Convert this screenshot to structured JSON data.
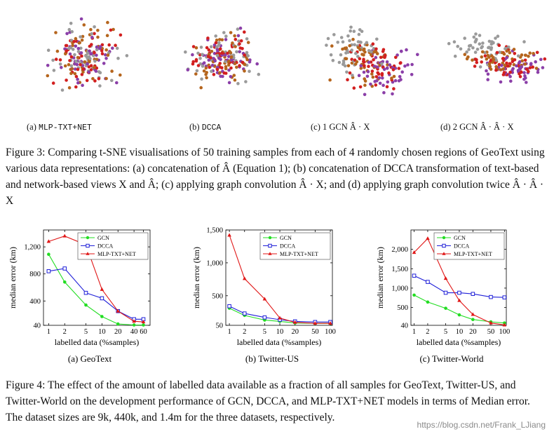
{
  "figure3": {
    "panels": [
      {
        "label": "(a)",
        "name": "MLP-TXT+NET"
      },
      {
        "label": "(b)",
        "name": "DCCA"
      },
      {
        "label": "(c)",
        "name": "1 GCN Â · X"
      },
      {
        "label": "(d)",
        "name": "2 GCN Â · Â · X"
      }
    ],
    "caption": "Figure 3: Comparing t-SNE visualisations of 50 training samples from each of 4 randomly chosen regions of GeoText using various data representations: (a) concatenation of Â (Equation 1); (b) concatenation of DCCA transformation of text-based and network-based views X and Â; (c) applying graph convolution Â · X; and (d) applying graph convolution twice Â · Â · X",
    "point_colors": [
      "#d21f1f",
      "#9a9a9a",
      "#8b3fa8",
      "#b5651d"
    ]
  },
  "figure4": {
    "caption": "Figure 4: The effect of the amount of labelled data available as a fraction of all samples for GeoText, Twitter-US, and Twitter-World on the development performance of GCN, DCCA, and MLP-TXT+NET models in terms of Median error. The dataset sizes are 9k, 440k, and 1.4m for the three datasets, respectively."
  },
  "chart_data": [
    {
      "type": "line",
      "subcaption": "(a) GeoText",
      "xlabel": "labelled data (%samples)",
      "ylabel": "median error (km)",
      "x_scale": "log",
      "xlim": [
        0.8,
        80
      ],
      "ylim": [
        40,
        1450
      ],
      "x_ticks": [
        1,
        2,
        5,
        10,
        20,
        40,
        60
      ],
      "x_tick_labels": [
        "1",
        "2",
        "5",
        "10",
        "20",
        "40",
        "60"
      ],
      "y_ticks": [
        40,
        400,
        800,
        1200
      ],
      "y_tick_labels": [
        "40",
        "400",
        "800",
        "1,200"
      ],
      "legend_position": "top-right",
      "series": [
        {
          "name": "GCN",
          "color": "#22dd22",
          "marker": "circle",
          "x": [
            1,
            2,
            5,
            10,
            20,
            40,
            60
          ],
          "values": [
            1090,
            680,
            340,
            170,
            60,
            45,
            45
          ]
        },
        {
          "name": "DCCA",
          "color": "#1f1fd8",
          "marker": "square",
          "x": [
            1,
            2,
            5,
            10,
            20,
            40,
            60
          ],
          "values": [
            840,
            880,
            520,
            440,
            250,
            130,
            130
          ]
        },
        {
          "name": "MLP-TXT+NET",
          "color": "#e01616",
          "marker": "triangle",
          "x": [
            1,
            2,
            5,
            10,
            20,
            40,
            60
          ],
          "values": [
            1280,
            1360,
            1230,
            570,
            250,
            100,
            90
          ]
        }
      ]
    },
    {
      "type": "line",
      "subcaption": "(b) Twitter-US",
      "xlabel": "labelled data (%samples)",
      "ylabel": "median error (km)",
      "x_scale": "log",
      "xlim": [
        0.85,
        110
      ],
      "ylim": [
        50,
        1500
      ],
      "x_ticks": [
        1,
        2,
        5,
        10,
        20,
        50,
        100
      ],
      "x_tick_labels": [
        "1",
        "2",
        "5",
        "10",
        "20",
        "50",
        "100"
      ],
      "y_ticks": [
        50,
        500,
        1000,
        1500
      ],
      "y_tick_labels": [
        "50",
        "500",
        "1,000",
        "1,500"
      ],
      "legend_position": "top-right",
      "series": [
        {
          "name": "GCN",
          "color": "#22dd22",
          "marker": "circle",
          "x": [
            1,
            2,
            5,
            10,
            20,
            50,
            100
          ],
          "values": [
            310,
            200,
            130,
            110,
            85,
            80,
            80
          ]
        },
        {
          "name": "DCCA",
          "color": "#1f1fd8",
          "marker": "square",
          "x": [
            1,
            2,
            5,
            10,
            20,
            50,
            100
          ],
          "values": [
            340,
            230,
            170,
            135,
            110,
            100,
            100
          ]
        },
        {
          "name": "MLP-TXT+NET",
          "color": "#e01616",
          "marker": "triangle",
          "x": [
            1,
            2,
            5,
            10,
            20,
            50,
            100
          ],
          "values": [
            1420,
            760,
            450,
            160,
            95,
            80,
            80
          ]
        }
      ]
    },
    {
      "type": "line",
      "subcaption": "(c) Twitter-World",
      "xlabel": "labelled data (%samples)",
      "ylabel": "median error (km)",
      "x_scale": "log",
      "xlim": [
        0.85,
        110
      ],
      "ylim": [
        40,
        2500
      ],
      "x_ticks": [
        1,
        2,
        5,
        10,
        20,
        50,
        100
      ],
      "x_tick_labels": [
        "1",
        "2",
        "5",
        "10",
        "20",
        "50",
        "100"
      ],
      "y_ticks": [
        40,
        500,
        1000,
        1500,
        2000
      ],
      "y_tick_labels": [
        "40",
        "500",
        "1,000",
        "1,500",
        "2,000"
      ],
      "legend_position": "top-right",
      "series": [
        {
          "name": "GCN",
          "color": "#22dd22",
          "marker": "circle",
          "x": [
            1,
            2,
            5,
            10,
            20,
            50,
            100
          ],
          "values": [
            820,
            640,
            480,
            310,
            190,
            130,
            100
          ]
        },
        {
          "name": "DCCA",
          "color": "#1f1fd8",
          "marker": "square",
          "x": [
            1,
            2,
            5,
            10,
            20,
            50,
            100
          ],
          "values": [
            1320,
            1160,
            880,
            880,
            850,
            770,
            760
          ]
        },
        {
          "name": "MLP-TXT+NET",
          "color": "#e01616",
          "marker": "triangle",
          "x": [
            1,
            2,
            5,
            10,
            20,
            50,
            100
          ],
          "values": [
            1920,
            2280,
            1250,
            680,
            320,
            100,
            50
          ]
        }
      ]
    }
  ],
  "watermark": "https://blog.csdn.net/Frank_LJiang"
}
